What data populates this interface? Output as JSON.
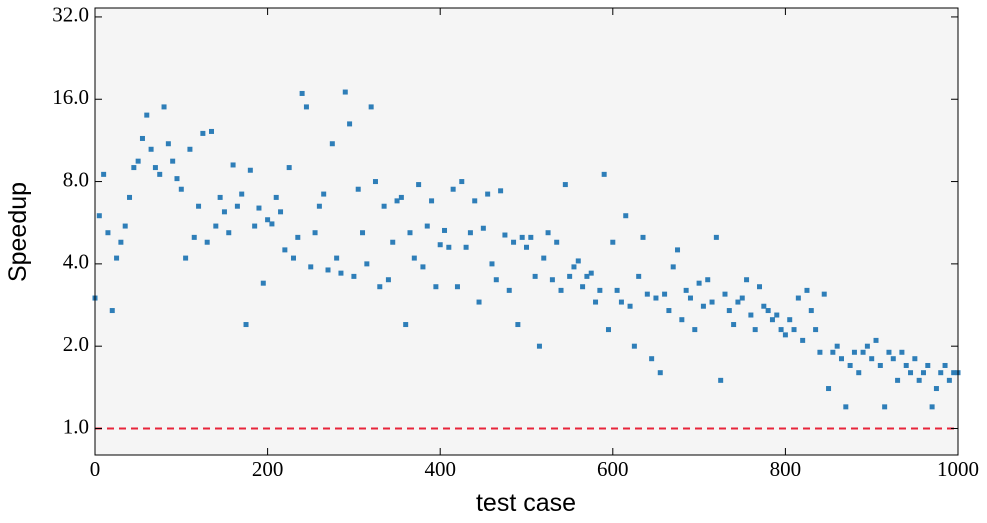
{
  "chart_data": {
    "type": "scatter",
    "xlabel": "test case",
    "ylabel": "Speedup",
    "xlim": [
      0,
      1000
    ],
    "xticks": [
      0,
      200,
      400,
      600,
      800,
      1000
    ],
    "ylim": [
      0.8,
      34.5
    ],
    "yscale": "log",
    "yticks": [
      {
        "value": 1,
        "label": "1.0"
      },
      {
        "value": 2,
        "label": "2.0"
      },
      {
        "value": 4,
        "label": "4.0"
      },
      {
        "value": 8,
        "label": "8.0"
      },
      {
        "value": 16,
        "label": "16.0"
      },
      {
        "value": 32,
        "label": "32.0"
      }
    ],
    "hline": {
      "value": 1,
      "color": "#e8253a"
    },
    "series": [
      {
        "color": "#2e7eb8",
        "x": [
          0,
          5,
          10,
          15,
          20,
          25,
          30,
          35,
          40,
          45,
          50,
          55,
          60,
          65,
          70,
          75,
          80,
          85,
          90,
          95,
          100,
          105,
          110,
          115,
          120,
          125,
          130,
          135,
          140,
          145,
          150,
          155,
          160,
          165,
          170,
          175,
          180,
          185,
          190,
          195,
          200,
          205,
          210,
          215,
          220,
          225,
          230,
          235,
          240,
          245,
          250,
          255,
          260,
          265,
          270,
          275,
          280,
          285,
          290,
          295,
          300,
          305,
          310,
          315,
          320,
          325,
          330,
          335,
          340,
          345,
          350,
          355,
          360,
          365,
          370,
          375,
          380,
          385,
          390,
          395,
          400,
          405,
          410,
          415,
          420,
          425,
          430,
          435,
          440,
          445,
          450,
          455,
          460,
          465,
          470,
          475,
          480,
          485,
          490,
          495,
          500,
          505,
          510,
          515,
          520,
          525,
          530,
          535,
          540,
          545,
          550,
          555,
          560,
          565,
          570,
          575,
          580,
          585,
          590,
          595,
          600,
          605,
          610,
          615,
          620,
          625,
          630,
          635,
          640,
          645,
          650,
          655,
          660,
          665,
          670,
          675,
          680,
          685,
          690,
          695,
          700,
          705,
          710,
          715,
          720,
          725,
          730,
          735,
          740,
          745,
          750,
          755,
          760,
          765,
          770,
          775,
          780,
          785,
          790,
          795,
          800,
          805,
          810,
          815,
          820,
          825,
          830,
          835,
          840,
          845,
          850,
          855,
          860,
          865,
          870,
          875,
          880,
          885,
          890,
          895,
          900,
          905,
          910,
          915,
          920,
          925,
          930,
          935,
          940,
          945,
          950,
          955,
          960,
          965,
          970,
          975,
          980,
          985,
          990,
          995,
          1000
        ],
        "values": [
          3.0,
          6.0,
          8.5,
          5.2,
          2.7,
          4.2,
          4.8,
          5.5,
          7.0,
          9.0,
          9.5,
          11.5,
          14,
          10.5,
          9,
          8.5,
          15,
          11,
          9.5,
          8.2,
          7.5,
          4.2,
          10.5,
          5,
          6.5,
          12,
          4.8,
          12.2,
          5.5,
          7,
          6.2,
          5.2,
          9.2,
          6.5,
          7.2,
          2.4,
          8.8,
          5.5,
          6.4,
          3.4,
          5.8,
          5.6,
          7,
          6.2,
          4.5,
          9,
          4.2,
          5,
          16.8,
          15,
          3.9,
          5.2,
          6.5,
          7.2,
          3.8,
          11,
          4.2,
          3.7,
          17,
          13,
          3.6,
          7.5,
          5.2,
          4,
          15,
          8,
          3.3,
          6.5,
          3.5,
          4.8,
          6.8,
          7,
          2.4,
          5.2,
          4.2,
          7.8,
          3.9,
          5.5,
          6.8,
          3.3,
          4.7,
          5.3,
          4.6,
          7.5,
          3.3,
          8,
          4.6,
          5.2,
          6.8,
          2.9,
          5.4,
          7.2,
          4,
          3.5,
          7.4,
          5.1,
          3.2,
          4.8,
          2.4,
          5,
          4.6,
          5,
          3.6,
          2,
          4.2,
          5.2,
          3.5,
          4.8,
          3.2,
          7.8,
          3.6,
          3.9,
          4.1,
          3.3,
          3.6,
          3.7,
          2.9,
          3.2,
          8.5,
          2.3,
          4.8,
          3.2,
          2.9,
          6,
          2.8,
          2,
          3.6,
          5,
          3.1,
          1.8,
          3,
          1.6,
          3.1,
          2.7,
          3.9,
          4.5,
          2.5,
          3.2,
          3,
          2.3,
          3.4,
          2.8,
          3.5,
          2.9,
          5,
          1.5,
          3.1,
          2.7,
          2.4,
          2.9,
          3,
          3.5,
          2.6,
          2.3,
          3.3,
          2.8,
          2.7,
          2.5,
          2.6,
          2.3,
          2.2,
          2.5,
          2.3,
          3,
          2.1,
          3.2,
          2.7,
          2.3,
          1.9,
          3.1,
          1.4,
          1.9,
          2,
          1.8,
          1.2,
          1.7,
          1.9,
          1.6,
          1.9,
          2,
          1.8,
          2.1,
          1.7,
          1.2,
          1.9,
          1.8,
          1.5,
          1.9,
          1.7,
          1.6,
          1.8,
          1.5,
          1.6,
          1.7,
          1.2,
          1.4,
          1.6,
          1.7,
          1.5,
          1.6,
          1.6
        ]
      }
    ]
  }
}
